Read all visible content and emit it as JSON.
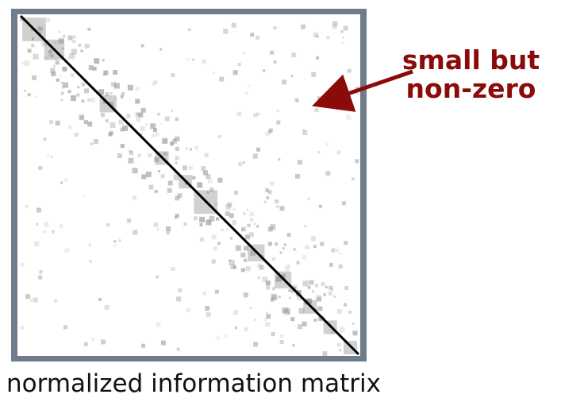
{
  "annotation": {
    "line1": "small but",
    "line2": "non-zero",
    "color": "#8b0a0a"
  },
  "caption": "normalized information matrix",
  "matrix": {
    "frame_color": "#6f7c8c",
    "background": "#ffffff",
    "diagonal_color": "#000000",
    "block_color": "#7a7a7a",
    "speckle_color": "#9a9a9a"
  }
}
